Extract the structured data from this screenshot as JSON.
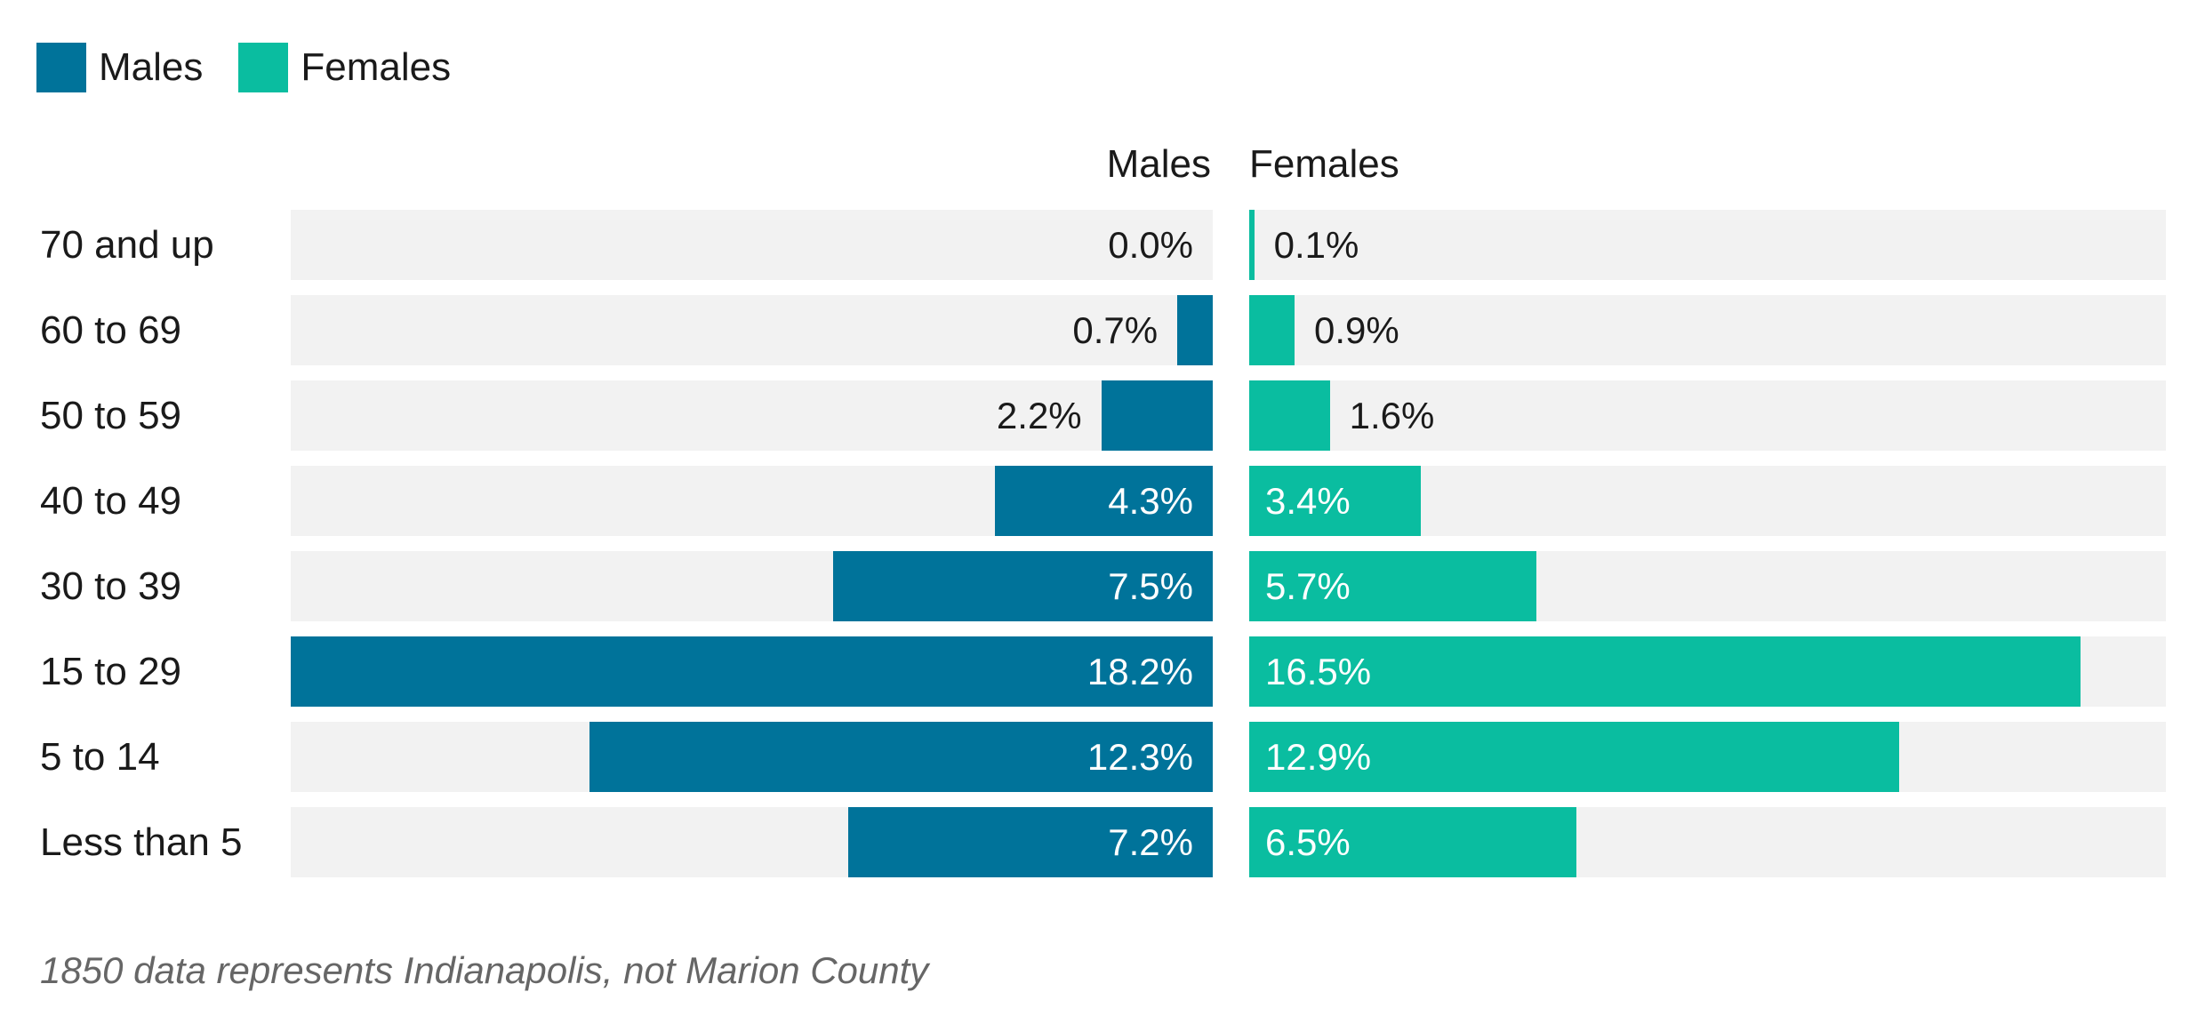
{
  "chart_data": {
    "type": "bar",
    "orientation": "horizontal",
    "layout": "population-pyramid",
    "categories": [
      "70 and up",
      "60 to 69",
      "50 to 59",
      "40 to 49",
      "30 to 39",
      "15 to 29",
      "5 to 14",
      "Less than 5"
    ],
    "series": [
      {
        "name": "Males",
        "color": "#00739a",
        "values": [
          0.0,
          0.7,
          2.2,
          4.3,
          7.5,
          18.2,
          12.3,
          7.2
        ],
        "labels": [
          "0.0%",
          "0.7%",
          "2.2%",
          "4.3%",
          "7.5%",
          "18.2%",
          "12.3%",
          "7.2%"
        ]
      },
      {
        "name": "Females",
        "color": "#0abda0",
        "values": [
          0.1,
          0.9,
          1.6,
          3.4,
          5.7,
          16.5,
          12.9,
          6.5
        ],
        "labels": [
          "0.1%",
          "0.9%",
          "1.6%",
          "3.4%",
          "5.7%",
          "16.5%",
          "12.9%",
          "6.5%"
        ]
      }
    ],
    "column_headers": [
      "Males",
      "Females"
    ],
    "xlim": [
      0,
      18.2
    ],
    "unit": "%",
    "legend": {
      "placement": "top-left",
      "entries": [
        "Males",
        "Females"
      ]
    },
    "note": "1850 data represents Indianapolis, not Marion County"
  }
}
